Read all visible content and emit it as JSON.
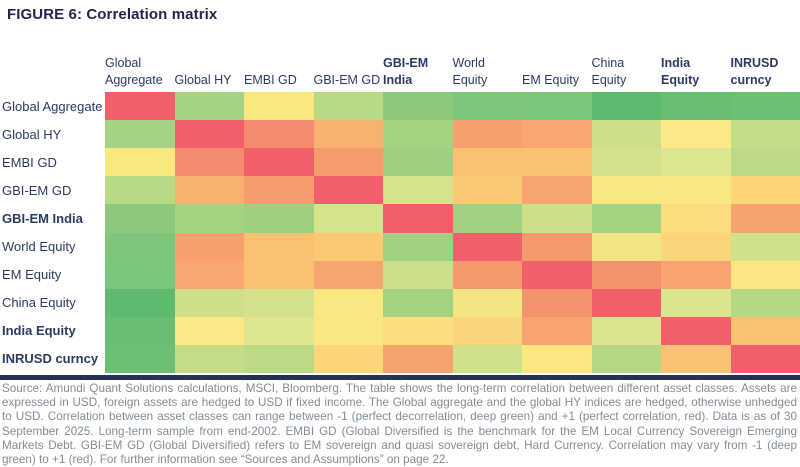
{
  "title": "FIGURE 6: Correlation matrix",
  "matrix": {
    "columns": [
      {
        "lines": [
          "Global",
          "Aggregate"
        ],
        "bold": false
      },
      {
        "lines": [
          "Global HY"
        ],
        "bold": false
      },
      {
        "lines": [
          "EMBI GD"
        ],
        "bold": false
      },
      {
        "lines": [
          "GBI-EM GD"
        ],
        "bold": false
      },
      {
        "lines": [
          "GBI-EM",
          "India"
        ],
        "bold": true
      },
      {
        "lines": [
          "World",
          "Equity"
        ],
        "bold": false
      },
      {
        "lines": [
          "EM Equity"
        ],
        "bold": false
      },
      {
        "lines": [
          "China",
          "Equity"
        ],
        "bold": false
      },
      {
        "lines": [
          "India",
          "Equity"
        ],
        "bold": true
      },
      {
        "lines": [
          "INRUSD",
          "curncy"
        ],
        "bold": true
      }
    ],
    "rows": [
      {
        "label": "Global Aggregate",
        "bold": false
      },
      {
        "label": "Global HY",
        "bold": false
      },
      {
        "label": "EMBI GD",
        "bold": false
      },
      {
        "label": "GBI-EM GD",
        "bold": false
      },
      {
        "label": "GBI-EM India",
        "bold": true
      },
      {
        "label": "World Equity",
        "bold": false
      },
      {
        "label": "EM Equity",
        "bold": false
      },
      {
        "label": "China Equity",
        "bold": false
      },
      {
        "label": "India Equity",
        "bold": true
      },
      {
        "label": "INRUSD curncy",
        "bold": true
      }
    ]
  },
  "chart_data": {
    "type": "heatmap",
    "title": "Correlation matrix",
    "row_labels": [
      "Global Aggregate",
      "Global HY",
      "EMBI GD",
      "GBI-EM GD",
      "GBI-EM India",
      "World Equity",
      "EM Equity",
      "China Equity",
      "India Equity",
      "INRUSD curncy"
    ],
    "col_labels": [
      "Global Aggregate",
      "Global HY",
      "EMBI GD",
      "GBI-EM GD",
      "GBI-EM India",
      "World Equity",
      "EM Equity",
      "China Equity",
      "India Equity",
      "INRUSD curncy"
    ],
    "scale": {
      "min": -1,
      "max": 1,
      "min_label": "deep green (perfect decorrelation)",
      "max_label": "red (perfect correlation)"
    },
    "legend_position": "none",
    "grid": false,
    "cell_colors": [
      [
        "#f1606a",
        "#a5d383",
        "#fbe77f",
        "#b9da85",
        "#8cc97d",
        "#7fc67b",
        "#7cc67c",
        "#5eba6e",
        "#68be72",
        "#6cc073"
      ],
      [
        "#a5d383",
        "#f1606a",
        "#f58a6e",
        "#f8b170",
        "#a6d381",
        "#f6a06e",
        "#f7a871",
        "#cde089",
        "#fce886",
        "#c3dd87"
      ],
      [
        "#fbe77f",
        "#f58a6e",
        "#f1606a",
        "#f69d6e",
        "#9ed07f",
        "#fac172",
        "#fac172",
        "#d4e38b",
        "#dee78d",
        "#bcda86"
      ],
      [
        "#b9da85",
        "#f8b170",
        "#f69d6e",
        "#f1606a",
        "#d5e38b",
        "#fbc873",
        "#f6a56f",
        "#fbe781",
        "#fbe781",
        "#fbd577"
      ],
      [
        "#8cc97d",
        "#a6d381",
        "#9ed07f",
        "#d5e38b",
        "#f1606a",
        "#a0d180",
        "#cbe089",
        "#a4d281",
        "#fbdd7e",
        "#f6a46f"
      ],
      [
        "#7fc67b",
        "#f6a06e",
        "#fac172",
        "#fbc873",
        "#a0d180",
        "#f1606a",
        "#f59a6d",
        "#f4e584",
        "#fbd57a",
        "#cfe28a"
      ],
      [
        "#7cc67c",
        "#f7a871",
        "#fac172",
        "#f6a56f",
        "#cbe089",
        "#f59a6d",
        "#f1606a",
        "#f4926c",
        "#f7a470",
        "#fbe681"
      ],
      [
        "#5eba6e",
        "#cde089",
        "#d4e38b",
        "#fbe781",
        "#a4d281",
        "#f4e584",
        "#f4926c",
        "#f1606a",
        "#dce58c",
        "#b5d884"
      ],
      [
        "#68be72",
        "#fce886",
        "#dee78d",
        "#fbe781",
        "#fbdd7e",
        "#fbd57a",
        "#f7a470",
        "#dce58c",
        "#f1606a",
        "#f9c273"
      ],
      [
        "#6cc073",
        "#c3dd87",
        "#bcda86",
        "#fbd577",
        "#f6a46f",
        "#cfe28a",
        "#fbe681",
        "#b5d884",
        "#f9c273",
        "#f1606a"
      ]
    ]
  },
  "colors": {
    "heading_navy": "#23254e",
    "label_navy": "#2d3a64",
    "divider_bar_navy": "#22305a",
    "footer_gray": "#848d95"
  },
  "footer": {
    "text": "Source: Amundi Quant Solutions calculations, MSCI, Bloomberg. The table shows the long-term correlation between different asset classes. Assets are expressed in USD, foreign assets are hedged to USD if fixed income. The Global aggregate and the global HY indices are hedged, otherwise unhedged to USD. Correlation between asset classes can range between -1 (perfect decorrelation, deep green) and +1 (perfect correlation, red). Data is as of 30 September 2025. Long-term sample from end-2002. EMBI GD (Global Diversified is the benchmark for the EM Local Currency Sovereign Emerging Markets Debt. GBI-EM GD (Global Diversified) refers to EM sovereign and quasi sovereign debt, Hard Currency. Correlation may vary from -1 (deep green) to +1 (red). For further information see “Sources and Assumptions” on page 22."
  }
}
